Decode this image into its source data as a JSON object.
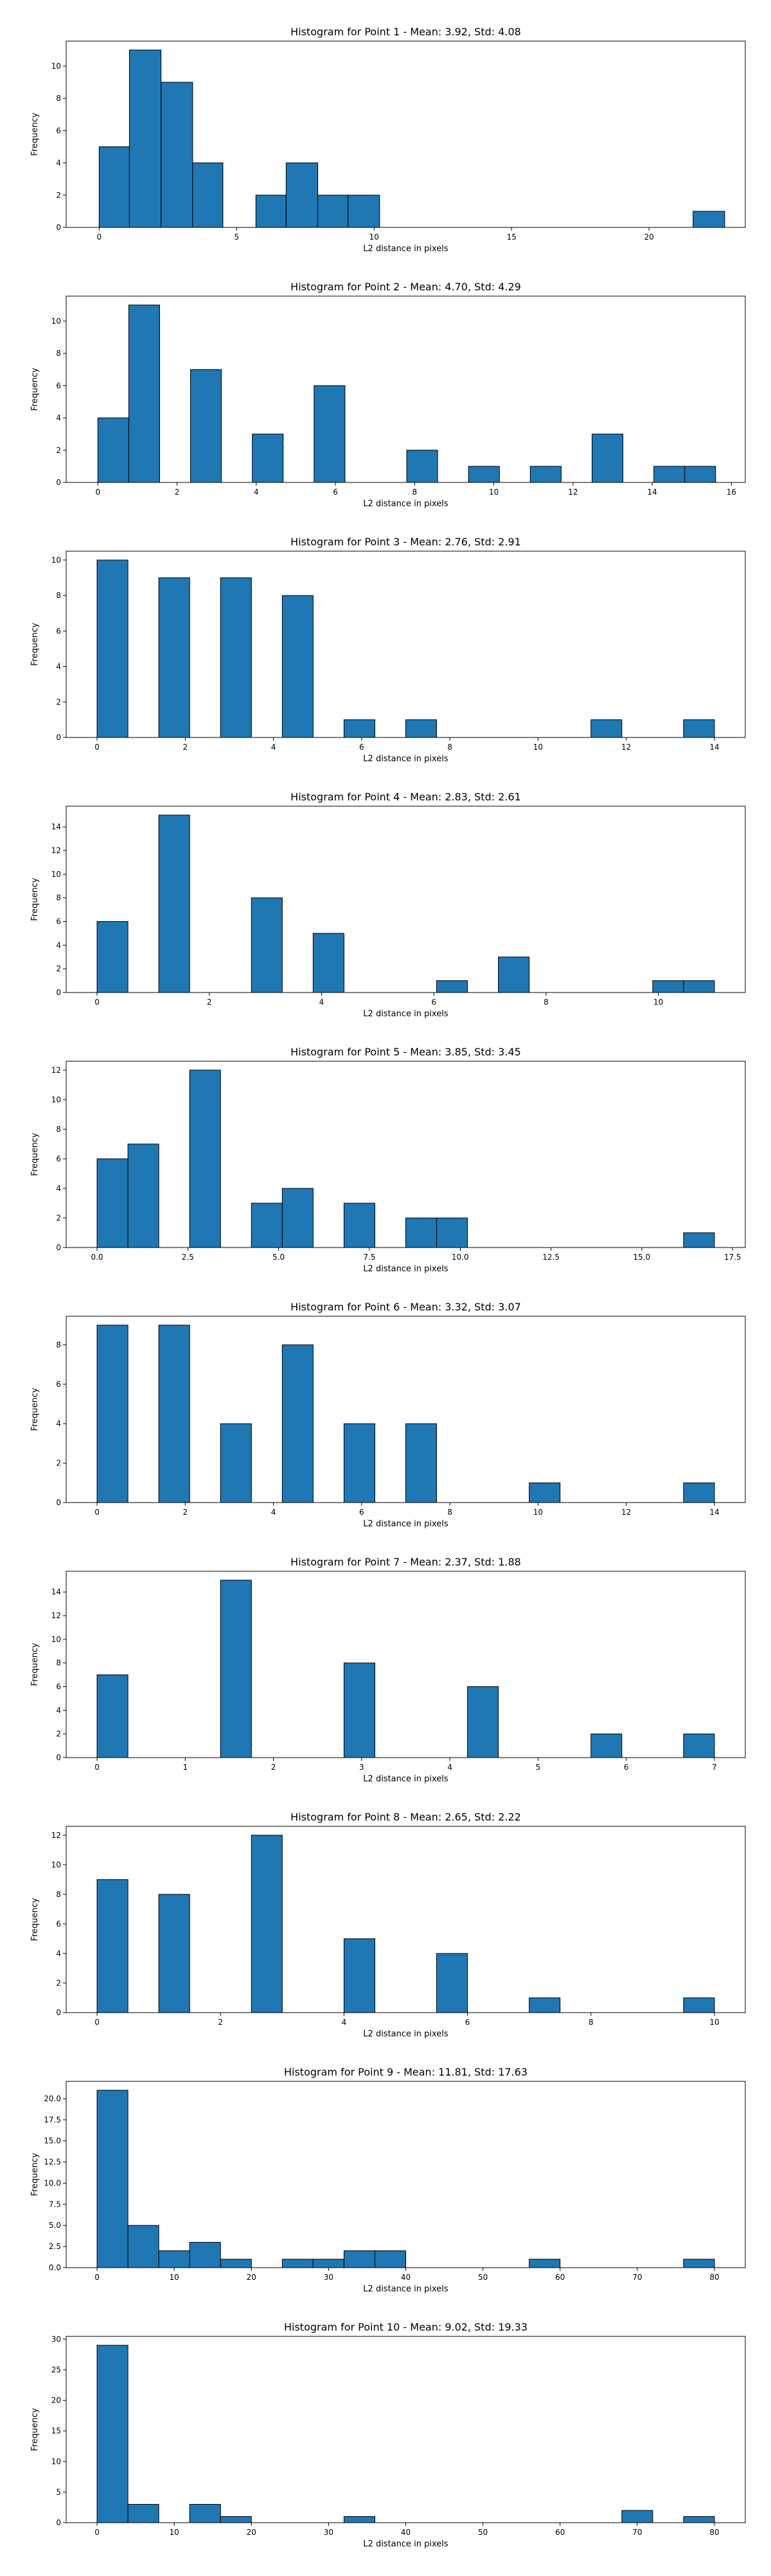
{
  "chart_data": [
    {
      "type": "bar",
      "title": "Histogram for Point 1 - Mean: 3.92, Std: 4.08",
      "xlabel": "L2 distance in pixels",
      "ylabel": "Frequency",
      "xlim": [
        -1.2,
        23.5
      ],
      "ylim": [
        0,
        11.55
      ],
      "xticks": [
        0,
        5,
        10,
        15,
        20
      ],
      "xtick_labels": [
        "0",
        "5",
        "10",
        "15",
        "20"
      ],
      "yticks": [
        0,
        2,
        4,
        6,
        8,
        10
      ],
      "ytick_labels": [
        "0",
        "2",
        "4",
        "6",
        "8",
        "10"
      ],
      "bins": [
        {
          "x0": 0.0,
          "x1": 1.1,
          "value": 5
        },
        {
          "x0": 1.1,
          "x1": 2.25,
          "value": 11
        },
        {
          "x0": 2.25,
          "x1": 3.4,
          "value": 9
        },
        {
          "x0": 3.4,
          "x1": 4.5,
          "value": 4
        },
        {
          "x0": 5.7,
          "x1": 6.8,
          "value": 2
        },
        {
          "x0": 6.8,
          "x1": 7.95,
          "value": 4
        },
        {
          "x0": 7.95,
          "x1": 9.05,
          "value": 2
        },
        {
          "x0": 9.05,
          "x1": 10.2,
          "value": 2
        },
        {
          "x0": 21.6,
          "x1": 22.75,
          "value": 1
        }
      ]
    },
    {
      "type": "bar",
      "title": "Histogram for Point 2 - Mean: 4.70, Std: 4.29",
      "xlabel": "L2 distance in pixels",
      "ylabel": "Frequency",
      "xlim": [
        -0.8,
        16.35
      ],
      "ylim": [
        0,
        11.55
      ],
      "xticks": [
        0,
        2,
        4,
        6,
        8,
        10,
        12,
        14,
        16
      ],
      "xtick_labels": [
        "0",
        "2",
        "4",
        "6",
        "8",
        "10",
        "12",
        "14",
        "16"
      ],
      "yticks": [
        0,
        2,
        4,
        6,
        8,
        10
      ],
      "ytick_labels": [
        "0",
        "2",
        "4",
        "6",
        "8",
        "10"
      ],
      "bins": [
        {
          "x0": 0.0,
          "x1": 0.78,
          "value": 4
        },
        {
          "x0": 0.78,
          "x1": 1.56,
          "value": 11
        },
        {
          "x0": 2.34,
          "x1": 3.12,
          "value": 7
        },
        {
          "x0": 3.9,
          "x1": 4.68,
          "value": 3
        },
        {
          "x0": 5.46,
          "x1": 6.24,
          "value": 6
        },
        {
          "x0": 7.8,
          "x1": 8.58,
          "value": 2
        },
        {
          "x0": 9.36,
          "x1": 10.14,
          "value": 1
        },
        {
          "x0": 10.92,
          "x1": 11.7,
          "value": 1
        },
        {
          "x0": 12.48,
          "x1": 13.26,
          "value": 3
        },
        {
          "x0": 14.04,
          "x1": 14.82,
          "value": 1
        },
        {
          "x0": 14.82,
          "x1": 15.6,
          "value": 1
        }
      ]
    },
    {
      "type": "bar",
      "title": "Histogram for Point 3 - Mean: 2.76, Std: 2.91",
      "xlabel": "L2 distance in pixels",
      "ylabel": "Frequency",
      "xlim": [
        -0.7,
        14.7
      ],
      "ylim": [
        0,
        10.5
      ],
      "xticks": [
        0,
        2,
        4,
        6,
        8,
        10,
        12,
        14
      ],
      "xtick_labels": [
        "0",
        "2",
        "4",
        "6",
        "8",
        "10",
        "12",
        "14"
      ],
      "yticks": [
        0,
        2,
        4,
        6,
        8,
        10
      ],
      "ytick_labels": [
        "0",
        "2",
        "4",
        "6",
        "8",
        "10"
      ],
      "bins": [
        {
          "x0": 0.0,
          "x1": 0.7,
          "value": 10
        },
        {
          "x0": 1.4,
          "x1": 2.1,
          "value": 9
        },
        {
          "x0": 2.8,
          "x1": 3.5,
          "value": 9
        },
        {
          "x0": 4.2,
          "x1": 4.9,
          "value": 8
        },
        {
          "x0": 5.6,
          "x1": 6.3,
          "value": 1
        },
        {
          "x0": 7.0,
          "x1": 7.7,
          "value": 1
        },
        {
          "x0": 11.2,
          "x1": 11.9,
          "value": 1
        },
        {
          "x0": 13.3,
          "x1": 14.0,
          "value": 1
        }
      ]
    },
    {
      "type": "bar",
      "title": "Histogram for Point 4 - Mean: 2.83, Std: 2.61",
      "xlabel": "L2 distance in pixels",
      "ylabel": "Frequency",
      "xlim": [
        -0.55,
        11.55
      ],
      "ylim": [
        0,
        15.75
      ],
      "xticks": [
        0,
        2,
        4,
        6,
        8,
        10
      ],
      "xtick_labels": [
        "0",
        "2",
        "4",
        "6",
        "8",
        "10"
      ],
      "yticks": [
        0,
        2,
        4,
        6,
        8,
        10,
        12,
        14
      ],
      "ytick_labels": [
        "0",
        "2",
        "4",
        "6",
        "8",
        "10",
        "12",
        "14"
      ],
      "bins": [
        {
          "x0": 0.0,
          "x1": 0.55,
          "value": 6
        },
        {
          "x0": 1.1,
          "x1": 1.65,
          "value": 15
        },
        {
          "x0": 2.75,
          "x1": 3.3,
          "value": 8
        },
        {
          "x0": 3.85,
          "x1": 4.4,
          "value": 5
        },
        {
          "x0": 6.05,
          "x1": 6.6,
          "value": 1
        },
        {
          "x0": 7.15,
          "x1": 7.7,
          "value": 3
        },
        {
          "x0": 9.9,
          "x1": 10.45,
          "value": 1
        },
        {
          "x0": 10.45,
          "x1": 11.0,
          "value": 1
        }
      ]
    },
    {
      "type": "bar",
      "title": "Histogram for Point 5 - Mean: 3.85, Std: 3.45",
      "xlabel": "L2 distance in pixels",
      "ylabel": "Frequency",
      "xlim": [
        -0.85,
        17.85
      ],
      "ylim": [
        0,
        12.6
      ],
      "xticks": [
        0,
        2.5,
        5,
        7.5,
        10,
        12.5,
        15,
        17.5
      ],
      "xtick_labels": [
        "0.0",
        "2.5",
        "5.0",
        "7.5",
        "10.0",
        "12.5",
        "15.0",
        "17.5"
      ],
      "yticks": [
        0,
        2,
        4,
        6,
        8,
        10,
        12
      ],
      "ytick_labels": [
        "0",
        "2",
        "4",
        "6",
        "8",
        "10",
        "12"
      ],
      "bins": [
        {
          "x0": 0.0,
          "x1": 0.85,
          "value": 6
        },
        {
          "x0": 0.85,
          "x1": 1.7,
          "value": 7
        },
        {
          "x0": 2.55,
          "x1": 3.4,
          "value": 12
        },
        {
          "x0": 4.25,
          "x1": 5.1,
          "value": 3
        },
        {
          "x0": 5.1,
          "x1": 5.95,
          "value": 4
        },
        {
          "x0": 6.8,
          "x1": 7.65,
          "value": 3
        },
        {
          "x0": 8.5,
          "x1": 9.35,
          "value": 2
        },
        {
          "x0": 9.35,
          "x1": 10.2,
          "value": 2
        },
        {
          "x0": 16.15,
          "x1": 17.0,
          "value": 1
        }
      ]
    },
    {
      "type": "bar",
      "title": "Histogram for Point 6 - Mean: 3.32, Std: 3.07",
      "xlabel": "L2 distance in pixels",
      "ylabel": "Frequency",
      "xlim": [
        -0.7,
        14.7
      ],
      "ylim": [
        0,
        9.45
      ],
      "xticks": [
        0,
        2,
        4,
        6,
        8,
        10,
        12,
        14
      ],
      "xtick_labels": [
        "0",
        "2",
        "4",
        "6",
        "8",
        "10",
        "12",
        "14"
      ],
      "yticks": [
        0,
        2,
        4,
        6,
        8
      ],
      "ytick_labels": [
        "0",
        "2",
        "4",
        "6",
        "8"
      ],
      "bins": [
        {
          "x0": 0.0,
          "x1": 0.7,
          "value": 9
        },
        {
          "x0": 1.4,
          "x1": 2.1,
          "value": 9
        },
        {
          "x0": 2.8,
          "x1": 3.5,
          "value": 4
        },
        {
          "x0": 4.2,
          "x1": 4.9,
          "value": 8
        },
        {
          "x0": 5.6,
          "x1": 6.3,
          "value": 4
        },
        {
          "x0": 7.0,
          "x1": 7.7,
          "value": 4
        },
        {
          "x0": 9.8,
          "x1": 10.5,
          "value": 1
        },
        {
          "x0": 13.3,
          "x1": 14.0,
          "value": 1
        }
      ]
    },
    {
      "type": "bar",
      "title": "Histogram for Point 7 - Mean: 2.37, Std: 1.88",
      "xlabel": "L2 distance in pixels",
      "ylabel": "Frequency",
      "xlim": [
        -0.35,
        7.35
      ],
      "ylim": [
        0,
        15.75
      ],
      "xticks": [
        0,
        1,
        2,
        3,
        4,
        5,
        6,
        7
      ],
      "xtick_labels": [
        "0",
        "1",
        "2",
        "3",
        "4",
        "5",
        "6",
        "7"
      ],
      "yticks": [
        0,
        2,
        4,
        6,
        8,
        10,
        12,
        14
      ],
      "ytick_labels": [
        "0",
        "2",
        "4",
        "6",
        "8",
        "10",
        "12",
        "14"
      ],
      "bins": [
        {
          "x0": 0.0,
          "x1": 0.35,
          "value": 7
        },
        {
          "x0": 1.4,
          "x1": 1.75,
          "value": 15
        },
        {
          "x0": 2.8,
          "x1": 3.15,
          "value": 8
        },
        {
          "x0": 4.2,
          "x1": 4.55,
          "value": 6
        },
        {
          "x0": 5.6,
          "x1": 5.95,
          "value": 2
        },
        {
          "x0": 6.65,
          "x1": 7.0,
          "value": 2
        }
      ]
    },
    {
      "type": "bar",
      "title": "Histogram for Point 8 - Mean: 2.65, Std: 2.22",
      "xlabel": "L2 distance in pixels",
      "ylabel": "Frequency",
      "xlim": [
        -0.5,
        10.5
      ],
      "ylim": [
        0,
        12.6
      ],
      "xticks": [
        0,
        2,
        4,
        6,
        8,
        10
      ],
      "xtick_labels": [
        "0",
        "2",
        "4",
        "6",
        "8",
        "10"
      ],
      "yticks": [
        0,
        2,
        4,
        6,
        8,
        10,
        12
      ],
      "ytick_labels": [
        "0",
        "2",
        "4",
        "6",
        "8",
        "10",
        "12"
      ],
      "bins": [
        {
          "x0": 0.0,
          "x1": 0.5,
          "value": 9
        },
        {
          "x0": 1.0,
          "x1": 1.5,
          "value": 8
        },
        {
          "x0": 2.5,
          "x1": 3.0,
          "value": 12
        },
        {
          "x0": 4.0,
          "x1": 4.5,
          "value": 5
        },
        {
          "x0": 5.5,
          "x1": 6.0,
          "value": 4
        },
        {
          "x0": 7.0,
          "x1": 7.5,
          "value": 1
        },
        {
          "x0": 9.5,
          "x1": 10.0,
          "value": 1
        }
      ]
    },
    {
      "type": "bar",
      "title": "Histogram for Point 9 - Mean: 11.81, Std: 17.63",
      "xlabel": "L2 distance in pixels",
      "ylabel": "Frequency",
      "xlim": [
        -4.0,
        84.0
      ],
      "ylim": [
        0,
        22.05
      ],
      "xticks": [
        0,
        10,
        20,
        30,
        40,
        50,
        60,
        70,
        80
      ],
      "xtick_labels": [
        "0",
        "10",
        "20",
        "30",
        "40",
        "50",
        "60",
        "70",
        "80"
      ],
      "yticks": [
        0,
        2.5,
        5,
        7.5,
        10,
        12.5,
        15,
        17.5,
        20
      ],
      "ytick_labels": [
        "0.0",
        "2.5",
        "5.0",
        "7.5",
        "10.0",
        "12.5",
        "15.0",
        "17.5",
        "20.0"
      ],
      "bins": [
        {
          "x0": 0.0,
          "x1": 4.0,
          "value": 21
        },
        {
          "x0": 4.0,
          "x1": 8.0,
          "value": 5
        },
        {
          "x0": 8.0,
          "x1": 12.0,
          "value": 2
        },
        {
          "x0": 12.0,
          "x1": 16.0,
          "value": 3
        },
        {
          "x0": 16.0,
          "x1": 20.0,
          "value": 1
        },
        {
          "x0": 24.0,
          "x1": 28.0,
          "value": 1
        },
        {
          "x0": 28.0,
          "x1": 32.0,
          "value": 1
        },
        {
          "x0": 32.0,
          "x1": 36.0,
          "value": 2
        },
        {
          "x0": 36.0,
          "x1": 40.0,
          "value": 2
        },
        {
          "x0": 56.0,
          "x1": 60.0,
          "value": 1
        },
        {
          "x0": 76.0,
          "x1": 80.0,
          "value": 1
        }
      ]
    },
    {
      "type": "bar",
      "title": "Histogram for Point 10 - Mean: 9.02, Std: 19.33",
      "xlabel": "L2 distance in pixels",
      "ylabel": "Frequency",
      "xlim": [
        -4.0,
        84.0
      ],
      "ylim": [
        0,
        30.45
      ],
      "xticks": [
        0,
        10,
        20,
        30,
        40,
        50,
        60,
        70,
        80
      ],
      "xtick_labels": [
        "0",
        "10",
        "20",
        "30",
        "40",
        "50",
        "60",
        "70",
        "80"
      ],
      "yticks": [
        0,
        5,
        10,
        15,
        20,
        25,
        30
      ],
      "ytick_labels": [
        "0",
        "5",
        "10",
        "15",
        "20",
        "25",
        "30"
      ],
      "bins": [
        {
          "x0": 0.0,
          "x1": 4.0,
          "value": 29
        },
        {
          "x0": 4.0,
          "x1": 8.0,
          "value": 3
        },
        {
          "x0": 12.0,
          "x1": 16.0,
          "value": 3
        },
        {
          "x0": 16.0,
          "x1": 20.0,
          "value": 1
        },
        {
          "x0": 32.0,
          "x1": 36.0,
          "value": 1
        },
        {
          "x0": 68.0,
          "x1": 72.0,
          "value": 2
        },
        {
          "x0": 76.0,
          "x1": 80.0,
          "value": 1
        }
      ]
    }
  ]
}
